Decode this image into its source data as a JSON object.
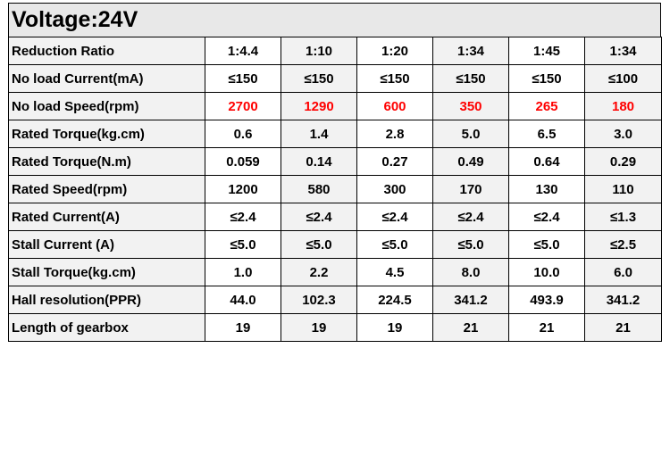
{
  "title": "Voltage:24V",
  "colors": {
    "highlight": "#ff0000"
  },
  "rows": [
    {
      "label": "Reduction Ratio",
      "values": [
        "1:4.4",
        "1:10",
        "1:20",
        "1:34",
        "1:45",
        "1:34"
      ]
    },
    {
      "label": "No load Current(mA)",
      "values": [
        "≤150",
        "≤150",
        "≤150",
        "≤150",
        "≤150",
        "≤100"
      ]
    },
    {
      "label": "No load Speed(rpm)",
      "values": [
        "2700",
        "1290",
        "600",
        "350",
        "265",
        "180"
      ],
      "highlight": true
    },
    {
      "label": "Rated Torque(kg.cm)",
      "values": [
        "0.6",
        "1.4",
        "2.8",
        "5.0",
        "6.5",
        "3.0"
      ]
    },
    {
      "label": "Rated Torque(N.m)",
      "values": [
        "0.059",
        "0.14",
        "0.27",
        "0.49",
        "0.64",
        "0.29"
      ]
    },
    {
      "label": "Rated Speed(rpm)",
      "values": [
        "1200",
        "580",
        "300",
        "170",
        "130",
        "110"
      ]
    },
    {
      "label": "Rated Current(A)",
      "values": [
        "≤2.4",
        "≤2.4",
        "≤2.4",
        "≤2.4",
        "≤2.4",
        "≤1.3"
      ]
    },
    {
      "label": "Stall Current (A)",
      "values": [
        "≤5.0",
        "≤5.0",
        "≤5.0",
        "≤5.0",
        "≤5.0",
        "≤2.5"
      ]
    },
    {
      "label": "Stall Torque(kg.cm)",
      "values": [
        "1.0",
        "2.2",
        "4.5",
        "8.0",
        "10.0",
        "6.0"
      ]
    },
    {
      "label": "Hall resolution(PPR)",
      "values": [
        "44.0",
        "102.3",
        "224.5",
        "341.2",
        "493.9",
        "341.2"
      ]
    },
    {
      "label": "Length of gearbox",
      "values": [
        "19",
        "19",
        "19",
        "21",
        "21",
        "21"
      ]
    }
  ]
}
